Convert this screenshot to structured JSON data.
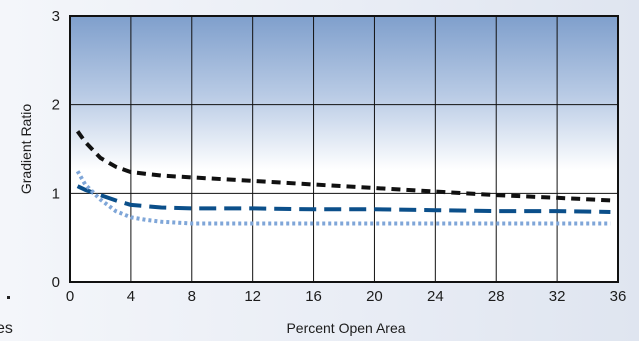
{
  "chart_data": {
    "type": "line",
    "title": "",
    "xlabel": "Percent Open Area",
    "ylabel": "Gradient Ratio",
    "xlim": [
      0,
      36
    ],
    "ylim": [
      0,
      3
    ],
    "x_ticks": [
      0,
      4,
      8,
      12,
      16,
      20,
      24,
      28,
      32,
      36
    ],
    "y_ticks": [
      0,
      1,
      2,
      3
    ],
    "grid": true,
    "legend": "none",
    "background": "gradient-blue-top-to-white",
    "series": [
      {
        "style": "black-short-dash",
        "color": "#111111",
        "x": [
          0.5,
          1,
          2,
          3,
          4,
          6,
          8,
          12,
          16,
          20,
          24,
          28,
          32,
          35.5
        ],
        "y": [
          1.7,
          1.58,
          1.4,
          1.3,
          1.24,
          1.2,
          1.18,
          1.14,
          1.1,
          1.06,
          1.02,
          0.98,
          0.95,
          0.92
        ]
      },
      {
        "style": "blue-long-dash",
        "color": "#0b4f8a",
        "x": [
          0.5,
          1,
          2,
          3,
          4,
          6,
          8,
          12,
          16,
          20,
          24,
          28,
          32,
          35.5
        ],
        "y": [
          1.08,
          1.04,
          0.98,
          0.92,
          0.87,
          0.84,
          0.83,
          0.83,
          0.82,
          0.82,
          0.81,
          0.8,
          0.8,
          0.79
        ]
      },
      {
        "style": "lightblue-dotted",
        "color": "#7fa6d8",
        "x": [
          0.5,
          1,
          2,
          3,
          4,
          5,
          6,
          8,
          12,
          16,
          20,
          24,
          28,
          32,
          35.5
        ],
        "y": [
          1.25,
          1.1,
          0.93,
          0.8,
          0.73,
          0.7,
          0.68,
          0.66,
          0.66,
          0.66,
          0.66,
          0.66,
          0.66,
          0.66,
          0.66
        ]
      }
    ]
  },
  "edge_fragments": {
    "left_text": "es"
  }
}
